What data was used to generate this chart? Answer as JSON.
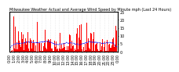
{
  "title": "Milwaukee Weather Actual and Average Wind Speed by Minute mph (Last 24 Hours)",
  "n_points": 1440,
  "ylim": [
    0,
    25
  ],
  "yticks": [
    0,
    5,
    10,
    15,
    20,
    25
  ],
  "background_color": "#ffffff",
  "bar_color": "#ff0000",
  "avg_line_color": "#0000ff",
  "grid_color": "#cccccc",
  "grid_style": ":",
  "seed": 42,
  "base_wind": 4.0,
  "spike_prob": 0.25,
  "spike_max": 25,
  "tick_label_fontsize": 3.5,
  "title_fontsize": 3.5,
  "n_xticks": 24,
  "avg_smooth_window": 120
}
